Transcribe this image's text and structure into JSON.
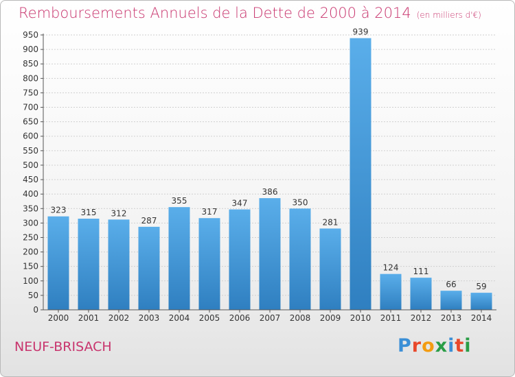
{
  "title": "Remboursements Annuels de la Dette de 2000 à 2014",
  "subtitle": "(en milliers d'€)",
  "city": "NEUF-BRISACH",
  "logo": {
    "text": "Proxiti",
    "colors": [
      "#3b8fd6",
      "#e8482b",
      "#f39c12",
      "#2a9d46",
      "#3b8fd6",
      "#e8482b",
      "#2a9d46"
    ]
  },
  "colors": {
    "bar_light": "#5aaeea",
    "bar_dark": "#2f7fc0",
    "title": "#c8346d",
    "grid": "#cfcfcf"
  },
  "chart_data": {
    "type": "bar",
    "title": "Remboursements Annuels de la Dette de 2000 à 2014",
    "xlabel": "",
    "ylabel": "",
    "categories": [
      "2000",
      "2001",
      "2002",
      "2003",
      "2004",
      "2005",
      "2006",
      "2007",
      "2008",
      "2009",
      "2010",
      "2011",
      "2012",
      "2013",
      "2014"
    ],
    "values": [
      323,
      315,
      312,
      287,
      355,
      317,
      347,
      386,
      350,
      281,
      939,
      124,
      111,
      66,
      59
    ],
    "ylim": [
      0,
      950
    ],
    "yticks": [
      0,
      50,
      100,
      150,
      200,
      250,
      300,
      350,
      400,
      450,
      500,
      550,
      600,
      650,
      700,
      750,
      800,
      850,
      900,
      950
    ],
    "grid": true
  }
}
